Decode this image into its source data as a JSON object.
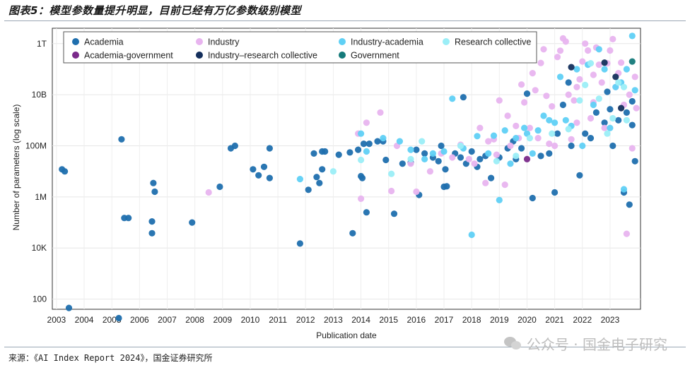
{
  "figure": {
    "title": "图表5：模型参数量提升明显，目前已经有万亿参数级别模型",
    "source": "来源：《AI Index Report 2024》，国金证券研究所",
    "watermark": "公众号 · 国金电子研究"
  },
  "chart_data": {
    "type": "scatter",
    "xlabel": "Publication date",
    "ylabel": "Number of parameters (log scale)",
    "y_scale": "log",
    "xlim": [
      2002.85,
      2024.1
    ],
    "ylim": [
      40,
      4000000000000
    ],
    "x_ticks": [
      "2003",
      "2004",
      "2005",
      "2006",
      "2007",
      "2008",
      "2009",
      "2010",
      "2011",
      "2012",
      "2013",
      "2014",
      "2015",
      "2016",
      "2017",
      "2018",
      "2019",
      "2020",
      "2021",
      "2022",
      "2023"
    ],
    "y_ticks": [
      {
        "label": "100",
        "value": 100
      },
      {
        "label": "10K",
        "value": 10000
      },
      {
        "label": "1M",
        "value": 1000000
      },
      {
        "label": "100M",
        "value": 100000000
      },
      {
        "label": "10B",
        "value": 10000000000
      },
      {
        "label": "1T",
        "value": 1000000000000
      }
    ],
    "grid": true,
    "legend_position": "top",
    "series": [
      {
        "name": "Academia",
        "color": "#1f6fae",
        "points": [
          [
            2003.2,
            12000000.0
          ],
          [
            2003.3,
            10000000.0
          ],
          [
            2003.45,
            45
          ],
          [
            2005.35,
            180000000.0
          ],
          [
            2005.45,
            150000.0
          ],
          [
            2005.6,
            150000.0
          ],
          [
            2006.5,
            3500000.0
          ],
          [
            2006.55,
            1600000.0
          ],
          [
            2006.45,
            110000.0
          ],
          [
            2006.45,
            38000.0
          ],
          [
            2005.25,
            18
          ],
          [
            2007.9,
            100000.0
          ],
          [
            2008.9,
            2500000.0
          ],
          [
            2009.3,
            80000000.0
          ],
          [
            2009.45,
            100000000.0
          ],
          [
            2010.1,
            12000000.0
          ],
          [
            2010.3,
            7000000.0
          ],
          [
            2010.5,
            15000000.0
          ],
          [
            2010.7,
            5500000.0
          ],
          [
            2010.7,
            80000000.0
          ],
          [
            2011.8,
            15000.0
          ],
          [
            2012.1,
            1900000.0
          ],
          [
            2012.4,
            6000000.0
          ],
          [
            2012.5,
            3500000.0
          ],
          [
            2012.6,
            12000000.0
          ],
          [
            2012.6,
            60000000.0
          ],
          [
            2012.3,
            50000000.0
          ],
          [
            2012.7,
            60000000.0
          ],
          [
            2013.2,
            45000000.0
          ],
          [
            2013.6,
            55000000.0
          ],
          [
            2013.7,
            38000.0
          ],
          [
            2013.9,
            70000000.0
          ],
          [
            2014.0,
            6500000.0
          ],
          [
            2014.05,
            5500000.0
          ],
          [
            2014.1,
            120000000.0
          ],
          [
            2014.2,
            250000.0
          ],
          [
            2014.3,
            120000000.0
          ],
          [
            2014.6,
            150000000.0
          ],
          [
            2014.8,
            150000000.0
          ],
          [
            2014.9,
            28000000.0
          ],
          [
            2015.2,
            220000.0
          ],
          [
            2015.5,
            20000000.0
          ],
          [
            2015.8,
            22000000.0
          ],
          [
            2016.0,
            70000000.0
          ],
          [
            2016.1,
            1200000.0
          ],
          [
            2016.3,
            50000000.0
          ],
          [
            2016.6,
            35000000.0
          ],
          [
            2016.8,
            25000000.0
          ],
          [
            2016.9,
            100000000.0
          ],
          [
            2017.0,
            2500000.0
          ],
          [
            2017.1,
            2600000.0
          ],
          [
            2017.05,
            12000000.0
          ],
          [
            2017.4,
            50000000.0
          ],
          [
            2017.6,
            35000000.0
          ],
          [
            2017.7,
            8000000000.0
          ],
          [
            2017.8,
            20000000.0
          ],
          [
            2018.0,
            60000000.0
          ],
          [
            2018.2,
            15000000.0
          ],
          [
            2018.3,
            30000000.0
          ],
          [
            2018.5,
            40000000.0
          ],
          [
            2018.7,
            5500000.0
          ],
          [
            2019.0,
            35000000.0
          ],
          [
            2019.3,
            80000000.0
          ],
          [
            2019.5,
            150000000.0
          ],
          [
            2019.6,
            30000000.0
          ],
          [
            2019.8,
            80000000.0
          ],
          [
            2020.0,
            11000000000.0
          ],
          [
            2020.2,
            900000.0
          ],
          [
            2020.5,
            40000000.0
          ],
          [
            2020.8,
            50000000.0
          ],
          [
            2021.0,
            1500000.0
          ],
          [
            2021.1,
            300000000.0
          ],
          [
            2021.3,
            4000000000.0
          ],
          [
            2021.5,
            30000000000.0
          ],
          [
            2021.6,
            100000000.0
          ],
          [
            2021.9,
            7000000.0
          ],
          [
            2022.1,
            300000000.0
          ],
          [
            2022.3,
            200000000.0
          ],
          [
            2022.5,
            2000000000.0
          ],
          [
            2022.8,
            800000000.0
          ],
          [
            2023.0,
            2700000000.0
          ],
          [
            2023.1,
            100000000.0
          ],
          [
            2023.3,
            1000000000.0
          ],
          [
            2023.5,
            1500000.0
          ],
          [
            2023.7,
            500000.0
          ],
          [
            2023.8,
            650000000.0
          ],
          [
            2023.9,
            25000000.0
          ],
          [
            2023.6,
            2000000000.0
          ],
          [
            2022.9,
            13000000000.0
          ],
          [
            2023.8,
            5500000000.0
          ]
        ]
      },
      {
        "name": "Industry",
        "color": "#e8b4ef",
        "points": [
          [
            2008.5,
            1500000.0
          ],
          [
            2013.9,
            300000000.0
          ],
          [
            2014.0,
            850000.0
          ],
          [
            2014.2,
            800000000.0
          ],
          [
            2014.7,
            2000000000.0
          ],
          [
            2015.1,
            1700000.0
          ],
          [
            2015.3,
            100000000.0
          ],
          [
            2015.8,
            20000000.0
          ],
          [
            2016.0,
            1600000.0
          ],
          [
            2016.5,
            10000000.0
          ],
          [
            2016.9,
            50000000.0
          ],
          [
            2017.3,
            35000000.0
          ],
          [
            2017.6,
            110000000.0
          ],
          [
            2017.9,
            30000000.0
          ],
          [
            2018.1,
            20000000.0
          ],
          [
            2018.3,
            500000000.0
          ],
          [
            2018.5,
            3500000.0
          ],
          [
            2018.6,
            150000000.0
          ],
          [
            2018.8,
            180000000.0
          ],
          [
            2018.9,
            45000000.0
          ],
          [
            2019.0,
            6000000000.0
          ],
          [
            2019.2,
            3000000.0
          ],
          [
            2019.4,
            100000000.0
          ],
          [
            2019.5,
            300000000000.0
          ],
          [
            2019.6,
            600000000.0
          ],
          [
            2019.7,
            200000000.0
          ],
          [
            2019.8,
            25000000000.0
          ],
          [
            2019.9,
            5000000000.0
          ],
          [
            2020.1,
            500000000.0
          ],
          [
            2020.2,
            70000000000.0
          ],
          [
            2020.4,
            200000000.0
          ],
          [
            2020.5,
            175000000000.0
          ],
          [
            2020.6,
            600000000000.0
          ],
          [
            2020.7,
            9000000000.0
          ],
          [
            2020.8,
            120000000.0
          ],
          [
            2020.9,
            3500000000.0
          ],
          [
            2021.0,
            100000000.0
          ],
          [
            2021.1,
            300000000000.0
          ],
          [
            2021.2,
            530000000000.0
          ],
          [
            2021.3,
            1600000000000.0
          ],
          [
            2021.4,
            1200000000000.0
          ],
          [
            2021.5,
            10000000000.0
          ],
          [
            2021.6,
            180000000.0
          ],
          [
            2021.7,
            6000000000.0
          ],
          [
            2021.8,
            800000000.0
          ],
          [
            2021.9,
            40000000000.0
          ],
          [
            2022.0,
            200000000000.0
          ],
          [
            2022.1,
            1000000000000.0
          ],
          [
            2022.2,
            540000000000.0
          ],
          [
            2022.3,
            1200000000.0
          ],
          [
            2022.4,
            5000000000.0
          ],
          [
            2022.5,
            700000000000.0
          ],
          [
            2022.6,
            150000000000.0
          ],
          [
            2022.7,
            30000000000.0
          ],
          [
            2022.8,
            500000000.0
          ],
          [
            2022.9,
            170000000000.0
          ],
          [
            2023.0,
            540000000000.0
          ],
          [
            2023.1,
            1500000000000.0
          ],
          [
            2023.2,
            20000000000.0
          ],
          [
            2023.3,
            70000000000.0
          ],
          [
            2023.4,
            180000000000.0
          ],
          [
            2023.5,
            4000000000.0
          ],
          [
            2023.6,
            36000.0
          ],
          [
            2023.7,
            10000000000.0
          ],
          [
            2023.8,
            80000000.0
          ],
          [
            2023.9,
            50000000000.0
          ],
          [
            2023.95,
            3000000000.0
          ],
          [
            2022.4,
            60000000000.0
          ],
          [
            2021.8,
            20000000000.0
          ],
          [
            2019.3,
            1500000000.0
          ],
          [
            2020.3,
            15000000000.0
          ]
        ]
      },
      {
        "name": "Industry-academia",
        "color": "#5fd0f5",
        "points": [
          [
            2011.8,
            5000000.0
          ],
          [
            2014.0,
            300000000.0
          ],
          [
            2014.2,
            60000000.0
          ],
          [
            2014.8,
            200000000.0
          ],
          [
            2015.4,
            150000000.0
          ],
          [
            2015.8,
            70000000.0
          ],
          [
            2016.3,
            30000000.0
          ],
          [
            2016.6,
            50000000.0
          ],
          [
            2017.0,
            60000000.0
          ],
          [
            2017.3,
            7000000000.0
          ],
          [
            2017.7,
            80000000.0
          ],
          [
            2018.0,
            33000.0
          ],
          [
            2018.2,
            240000000.0
          ],
          [
            2018.6,
            50000000.0
          ],
          [
            2018.8,
            250000000.0
          ],
          [
            2019.0,
            750000.0
          ],
          [
            2019.2,
            400000000.0
          ],
          [
            2019.4,
            20000000.0
          ],
          [
            2019.6,
            200000000.0
          ],
          [
            2019.9,
            500000000.0
          ],
          [
            2020.0,
            300000000.0
          ],
          [
            2020.2,
            50000000.0
          ],
          [
            2020.4,
            400000000.0
          ],
          [
            2020.6,
            1500000000.0
          ],
          [
            2020.8,
            1000000000.0
          ],
          [
            2021.0,
            800000000.0
          ],
          [
            2021.2,
            50000000000.0
          ],
          [
            2021.4,
            1000000000.0
          ],
          [
            2021.6,
            600000000.0
          ],
          [
            2021.8,
            100000000000.0
          ],
          [
            2022.0,
            100000000.0
          ],
          [
            2022.2,
            150000000000.0
          ],
          [
            2022.4,
            4000000000.0
          ],
          [
            2022.6,
            600000000000.0
          ],
          [
            2022.8,
            100000000000.0
          ],
          [
            2023.0,
            500000000.0
          ],
          [
            2023.2,
            20000000000.0
          ],
          [
            2023.4,
            30000000000.0
          ],
          [
            2023.5,
            2000000.0
          ],
          [
            2023.6,
            100000000000.0
          ],
          [
            2023.8,
            2000000000000.0
          ],
          [
            2023.9,
            15000000000.0
          ]
        ]
      },
      {
        "name": "Research collective",
        "color": "#9beef7",
        "points": [
          [
            2013.0,
            10000000.0
          ],
          [
            2014.0,
            28000000.0
          ],
          [
            2015.1,
            8000000.0
          ],
          [
            2015.8,
            30000000.0
          ],
          [
            2016.2,
            150000000.0
          ],
          [
            2017.6,
            100000000.0
          ],
          [
            2018.9,
            25000000.0
          ],
          [
            2019.6,
            40000000.0
          ],
          [
            2020.1,
            200000000.0
          ],
          [
            2020.9,
            300000000.0
          ],
          [
            2021.5,
            450000000.0
          ],
          [
            2021.9,
            6000000000.0
          ],
          [
            2022.1,
            24000000000.0
          ],
          [
            2022.3,
            170000000000.0
          ],
          [
            2022.6,
            7000000000.0
          ],
          [
            2022.9,
            300000000.0
          ],
          [
            2023.1,
            1200000000.0
          ],
          [
            2023.3,
            30000000000.0
          ],
          [
            2023.5,
            20000000000.0
          ],
          [
            2023.6,
            1000000000.0
          ]
        ]
      },
      {
        "name": "Academia-government",
        "color": "#7a2a8a",
        "points": [
          [
            2020.0,
            30000000.0
          ]
        ]
      },
      {
        "name": "Industry–research collective",
        "color": "#142f5c",
        "points": [
          [
            2021.6,
            120000000000.0
          ],
          [
            2022.8,
            180000000000.0
          ],
          [
            2023.2,
            50000000000.0
          ],
          [
            2023.4,
            3000000000.0
          ]
        ]
      },
      {
        "name": "Government",
        "color": "#157a7a",
        "points": [
          [
            2023.8,
            200000000000.0
          ]
        ]
      }
    ],
    "legend": [
      [
        "Academia",
        "Industry",
        "Industry-academia",
        "Research collective"
      ],
      [
        "Academia-government",
        "Industry–research collective",
        "Government"
      ]
    ]
  }
}
